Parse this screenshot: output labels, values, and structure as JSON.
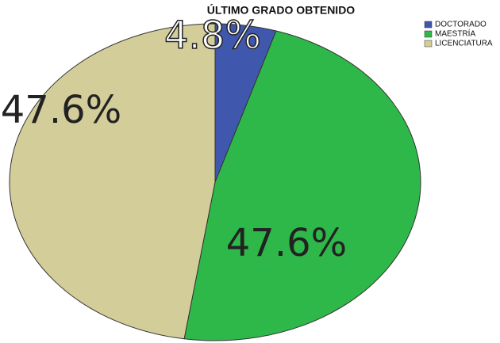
{
  "chart_data": {
    "type": "pie",
    "title": "ÚLTIMO GRADO OBTENIDO",
    "categories": [
      "DOCTORADO",
      "MAESTRÍA",
      "LICENCIATURA"
    ],
    "values": [
      4.8,
      47.6,
      47.6
    ],
    "value_labels": [
      "4.8%",
      "47.6%",
      "47.6%"
    ],
    "colors": [
      "#3f58ad",
      "#2fb84a",
      "#d3cd99"
    ],
    "legend": "top-right"
  }
}
